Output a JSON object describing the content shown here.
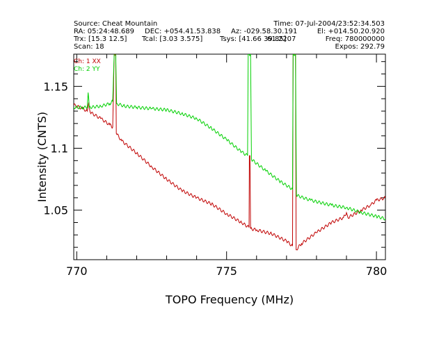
{
  "header": {
    "source": "Source: Cheat Mountain",
    "time": "Time: 07-Jul-2004/23:52:34.503",
    "ra": "RA: 05:24:48.689",
    "dec": "DEC: +054.41.53.838",
    "az": "Az: -029.58.30.191",
    "el": "El: +014.50.20.920",
    "trx": "Trx: [15.3 12.5]",
    "tcal": "Tcal: [3.03 3.575]",
    "tsys": "Tsys: [41.66 39.85]",
    "overlap": "61.2207",
    "freq": "Freq: 780000000",
    "scan": "Scan: 18",
    "expos": "Expos: 292.79"
  },
  "chart_data": {
    "type": "line",
    "xlabel": "TOPO Frequency (MHz)",
    "ylabel": "Intensity (CNTS)",
    "xlim": [
      769.9,
      780.3
    ],
    "ylim": [
      1.01,
      1.176
    ],
    "x_ticks": [
      770,
      775,
      780
    ],
    "y_ticks": [
      1.05,
      1.1,
      1.15
    ],
    "x_tick_labels": [
      "770",
      "775",
      "780"
    ],
    "y_tick_labels": [
      "1.05",
      "1.1",
      "1.15"
    ],
    "legend": [
      "Ch: 1 XX",
      "Ch: 2 YY"
    ],
    "legend_placement": "top-left",
    "series": [
      {
        "name": "Ch: 1 XX",
        "color": "#c00000",
        "points": [
          [
            769.9,
            1.135
          ],
          [
            770.2,
            1.132
          ],
          [
            770.35,
            1.13
          ],
          [
            770.4,
            1.137
          ],
          [
            770.45,
            1.129
          ],
          [
            770.8,
            1.124
          ],
          [
            771.1,
            1.119
          ],
          [
            771.2,
            1.117
          ],
          [
            771.25,
            1.176
          ],
          [
            771.3,
            1.176
          ],
          [
            771.32,
            1.112
          ],
          [
            771.5,
            1.106
          ],
          [
            772.0,
            1.096
          ],
          [
            772.5,
            1.085
          ],
          [
            773.0,
            1.075
          ],
          [
            773.5,
            1.066
          ],
          [
            774.0,
            1.06
          ],
          [
            774.5,
            1.055
          ],
          [
            775.0,
            1.047
          ],
          [
            775.5,
            1.04
          ],
          [
            775.75,
            1.036
          ],
          [
            775.76,
            1.094
          ],
          [
            775.78,
            1.094
          ],
          [
            775.8,
            1.035
          ],
          [
            776.0,
            1.034
          ],
          [
            776.5,
            1.031
          ],
          [
            777.0,
            1.025
          ],
          [
            777.2,
            1.021
          ],
          [
            777.22,
            1.176
          ],
          [
            777.3,
            1.176
          ],
          [
            777.32,
            1.018
          ],
          [
            777.5,
            1.023
          ],
          [
            778.0,
            1.032
          ],
          [
            778.5,
            1.04
          ],
          [
            778.9,
            1.044
          ],
          [
            779.0,
            1.048
          ],
          [
            779.05,
            1.044
          ],
          [
            779.5,
            1.05
          ],
          [
            779.8,
            1.054
          ],
          [
            780.0,
            1.058
          ],
          [
            780.3,
            1.06
          ]
        ]
      },
      {
        "name": "Ch: 2 YY",
        "color": "#00d000",
        "points": [
          [
            769.9,
            1.133
          ],
          [
            770.2,
            1.133
          ],
          [
            770.35,
            1.133
          ],
          [
            770.38,
            1.145
          ],
          [
            770.42,
            1.133
          ],
          [
            770.8,
            1.134
          ],
          [
            771.1,
            1.136
          ],
          [
            771.2,
            1.138
          ],
          [
            771.25,
            1.176
          ],
          [
            771.3,
            1.176
          ],
          [
            771.33,
            1.136
          ],
          [
            771.6,
            1.134
          ],
          [
            772.0,
            1.133
          ],
          [
            772.5,
            1.132
          ],
          [
            773.0,
            1.131
          ],
          [
            773.5,
            1.128
          ],
          [
            774.0,
            1.124
          ],
          [
            774.5,
            1.116
          ],
          [
            775.0,
            1.107
          ],
          [
            775.5,
            1.097
          ],
          [
            775.7,
            1.094
          ],
          [
            775.72,
            1.176
          ],
          [
            775.8,
            1.176
          ],
          [
            775.83,
            1.091
          ],
          [
            776.3,
            1.082
          ],
          [
            776.8,
            1.073
          ],
          [
            777.2,
            1.067
          ],
          [
            777.22,
            1.176
          ],
          [
            777.3,
            1.176
          ],
          [
            777.33,
            1.062
          ],
          [
            777.8,
            1.058
          ],
          [
            778.5,
            1.054
          ],
          [
            779.0,
            1.052
          ],
          [
            779.5,
            1.048
          ],
          [
            780.0,
            1.045
          ],
          [
            780.3,
            1.043
          ]
        ]
      }
    ]
  }
}
